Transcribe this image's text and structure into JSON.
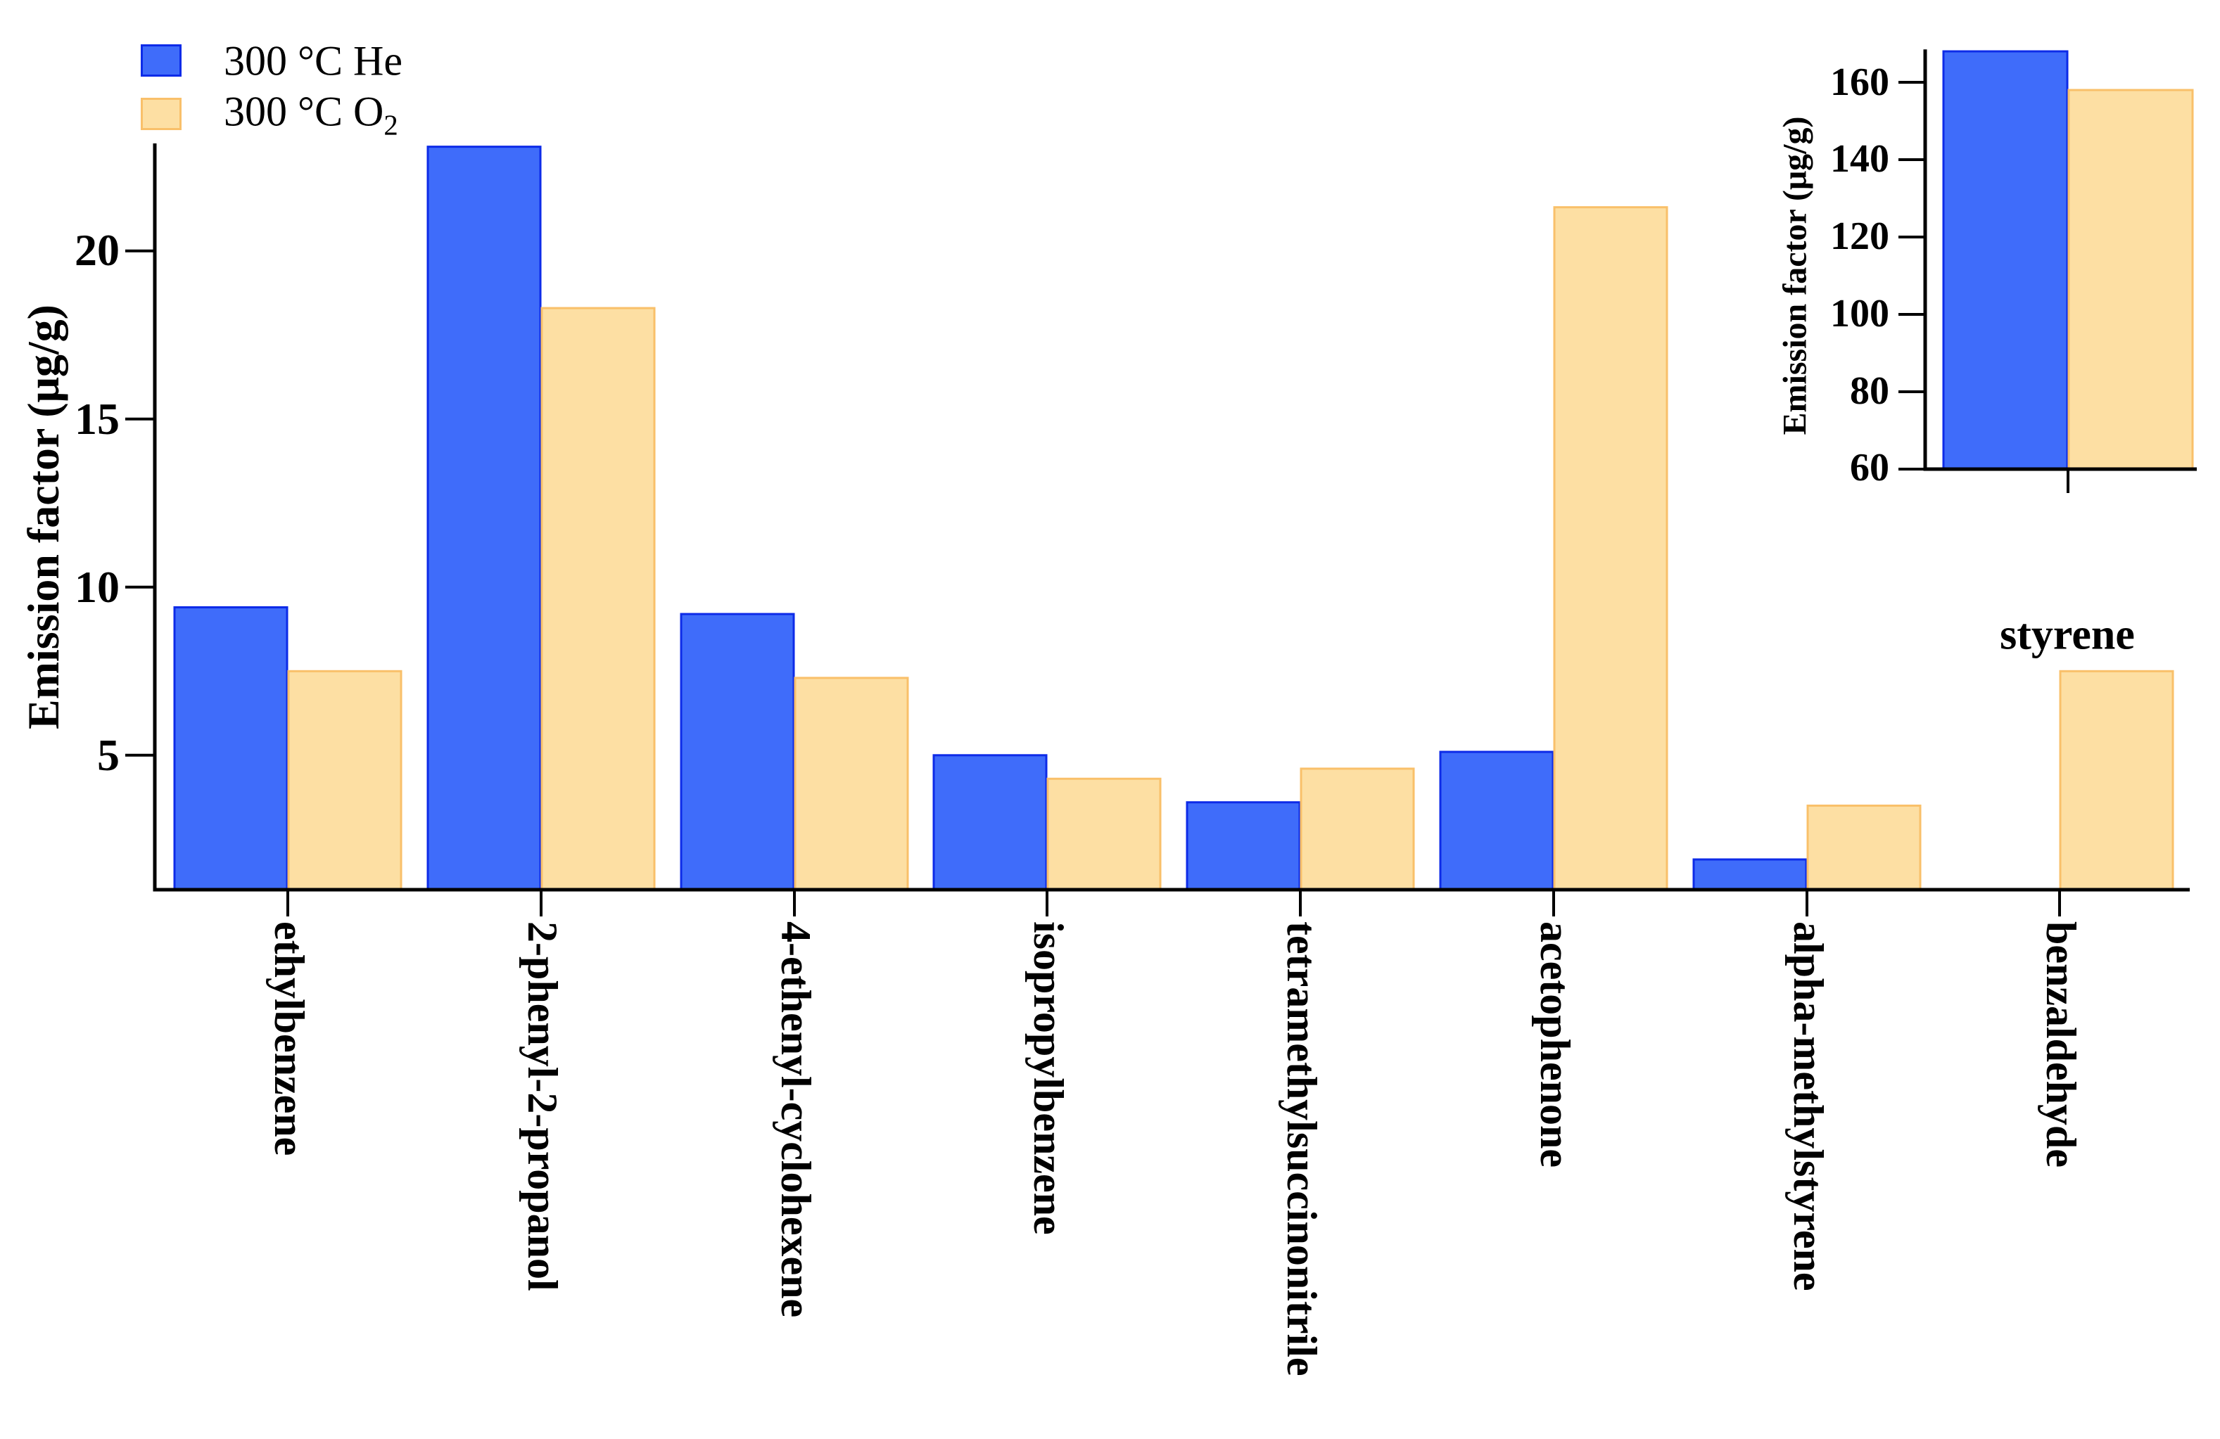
{
  "page": {
    "background": "#ffffff"
  },
  "legend": {
    "items": [
      {
        "label": "300 °C He",
        "color": "#3F6CFA",
        "border": "#0D2BE8"
      },
      {
        "label_prefix": "300 °C O",
        "label_sub": "2",
        "color": "#FDDFA3",
        "border": "#F9C06A"
      }
    ]
  },
  "chart_data": [
    {
      "id": "main",
      "type": "bar",
      "title": "",
      "ylabel": "Emission factor (μg/g)",
      "xlabel": "",
      "units": "μg/g",
      "grid": false,
      "legend_position": "top-left",
      "categories": [
        "ethylbenzene",
        "2-phenyl-2-propanol",
        "4-ethenyl-cyclohexene",
        "isopropylbenzene",
        "tetramethylsuccinonitrile",
        "acetophenone",
        "alpha-methylstyrene",
        "benzaldehyde"
      ],
      "series": [
        {
          "name": "300 °C He",
          "color": "#3F6CFA",
          "border": "#0D2BE8",
          "values": [
            9.4,
            23.1,
            9.2,
            5.0,
            3.6,
            5.1,
            1.9,
            0
          ]
        },
        {
          "name": "300 °C O2",
          "color": "#FDDFA3",
          "border": "#F9C06A",
          "values": [
            7.5,
            18.3,
            7.3,
            4.3,
            4.6,
            21.3,
            3.5,
            7.5
          ]
        }
      ],
      "yticks": [
        5,
        10,
        15,
        20
      ],
      "ylim": [
        1,
        23.2
      ]
    },
    {
      "id": "inset",
      "type": "bar",
      "title": "",
      "ylabel": "Emission factor (μg/g)",
      "xlabel": "",
      "units": "μg/g",
      "grid": false,
      "categories": [
        "styrene"
      ],
      "series": [
        {
          "name": "300 °C He",
          "color": "#3F6CFA",
          "border": "#0D2BE8",
          "values": [
            168
          ]
        },
        {
          "name": "300 °C O2",
          "color": "#FDDFA3",
          "border": "#F9C06A",
          "values": [
            158
          ]
        }
      ],
      "yticks": [
        60,
        80,
        100,
        120,
        140,
        160
      ],
      "ylim": [
        60,
        168.5
      ]
    }
  ]
}
